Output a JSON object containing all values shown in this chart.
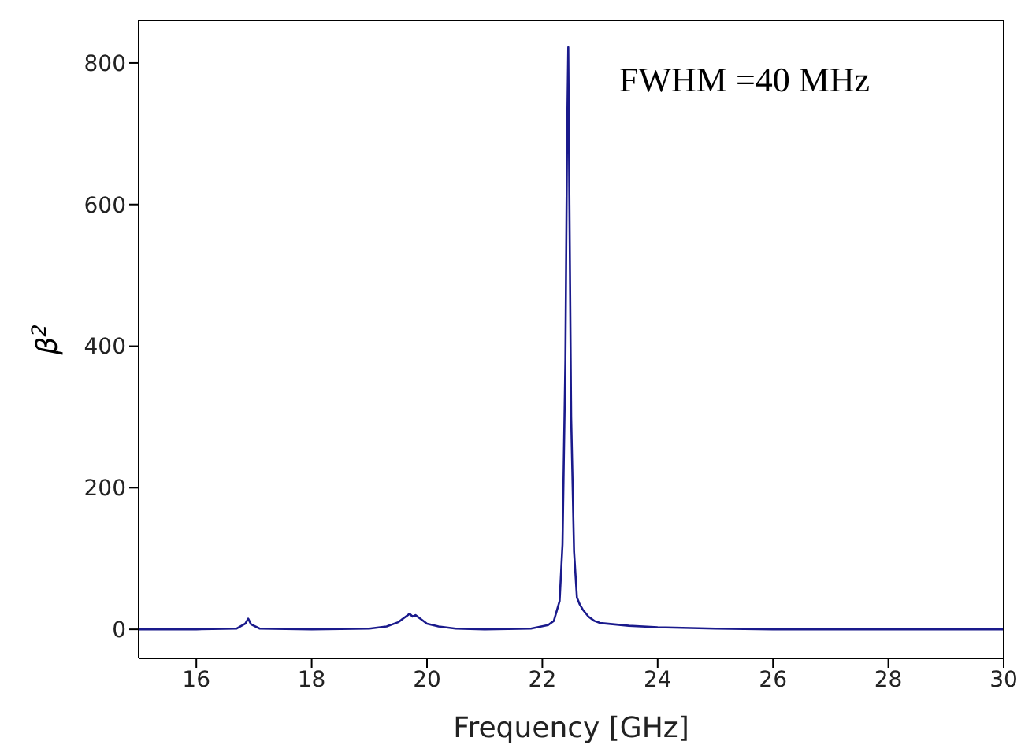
{
  "chart_data": {
    "type": "line",
    "xlabel": "Frequency [GHz]",
    "ylabel": "β$^{2}$",
    "annotations": [
      "FWHM =40 MHz"
    ],
    "x": [
      15,
      16,
      16.7,
      16.85,
      16.9,
      16.95,
      17.1,
      18,
      19,
      19.3,
      19.5,
      19.6,
      19.7,
      19.75,
      19.8,
      19.9,
      20,
      20.2,
      20.5,
      21,
      21.8,
      22.1,
      22.2,
      22.3,
      22.35,
      22.4,
      22.43,
      22.45,
      22.47,
      22.5,
      22.55,
      22.6,
      22.65,
      22.7,
      22.8,
      22.9,
      23,
      23.5,
      24,
      25,
      26,
      28,
      30
    ],
    "series": [
      {
        "color": "#1a1a8c",
        "values": [
          0,
          0,
          1,
          8,
          15,
          7,
          1,
          0,
          1,
          4,
          10,
          16,
          22,
          18,
          20,
          14,
          8,
          4,
          1,
          0,
          1,
          6,
          12,
          40,
          120,
          380,
          700,
          822,
          600,
          300,
          110,
          45,
          35,
          28,
          18,
          12,
          9,
          5,
          3,
          1,
          0,
          0,
          0
        ]
      }
    ],
    "xlim": [
      15,
      30
    ],
    "xticks": [
      16,
      18,
      20,
      22,
      24,
      26,
      28,
      30
    ],
    "ylim": [
      -41,
      860
    ],
    "yticks": [
      0,
      200,
      400,
      600,
      800
    ],
    "marker": "none",
    "line_style": "solid"
  }
}
